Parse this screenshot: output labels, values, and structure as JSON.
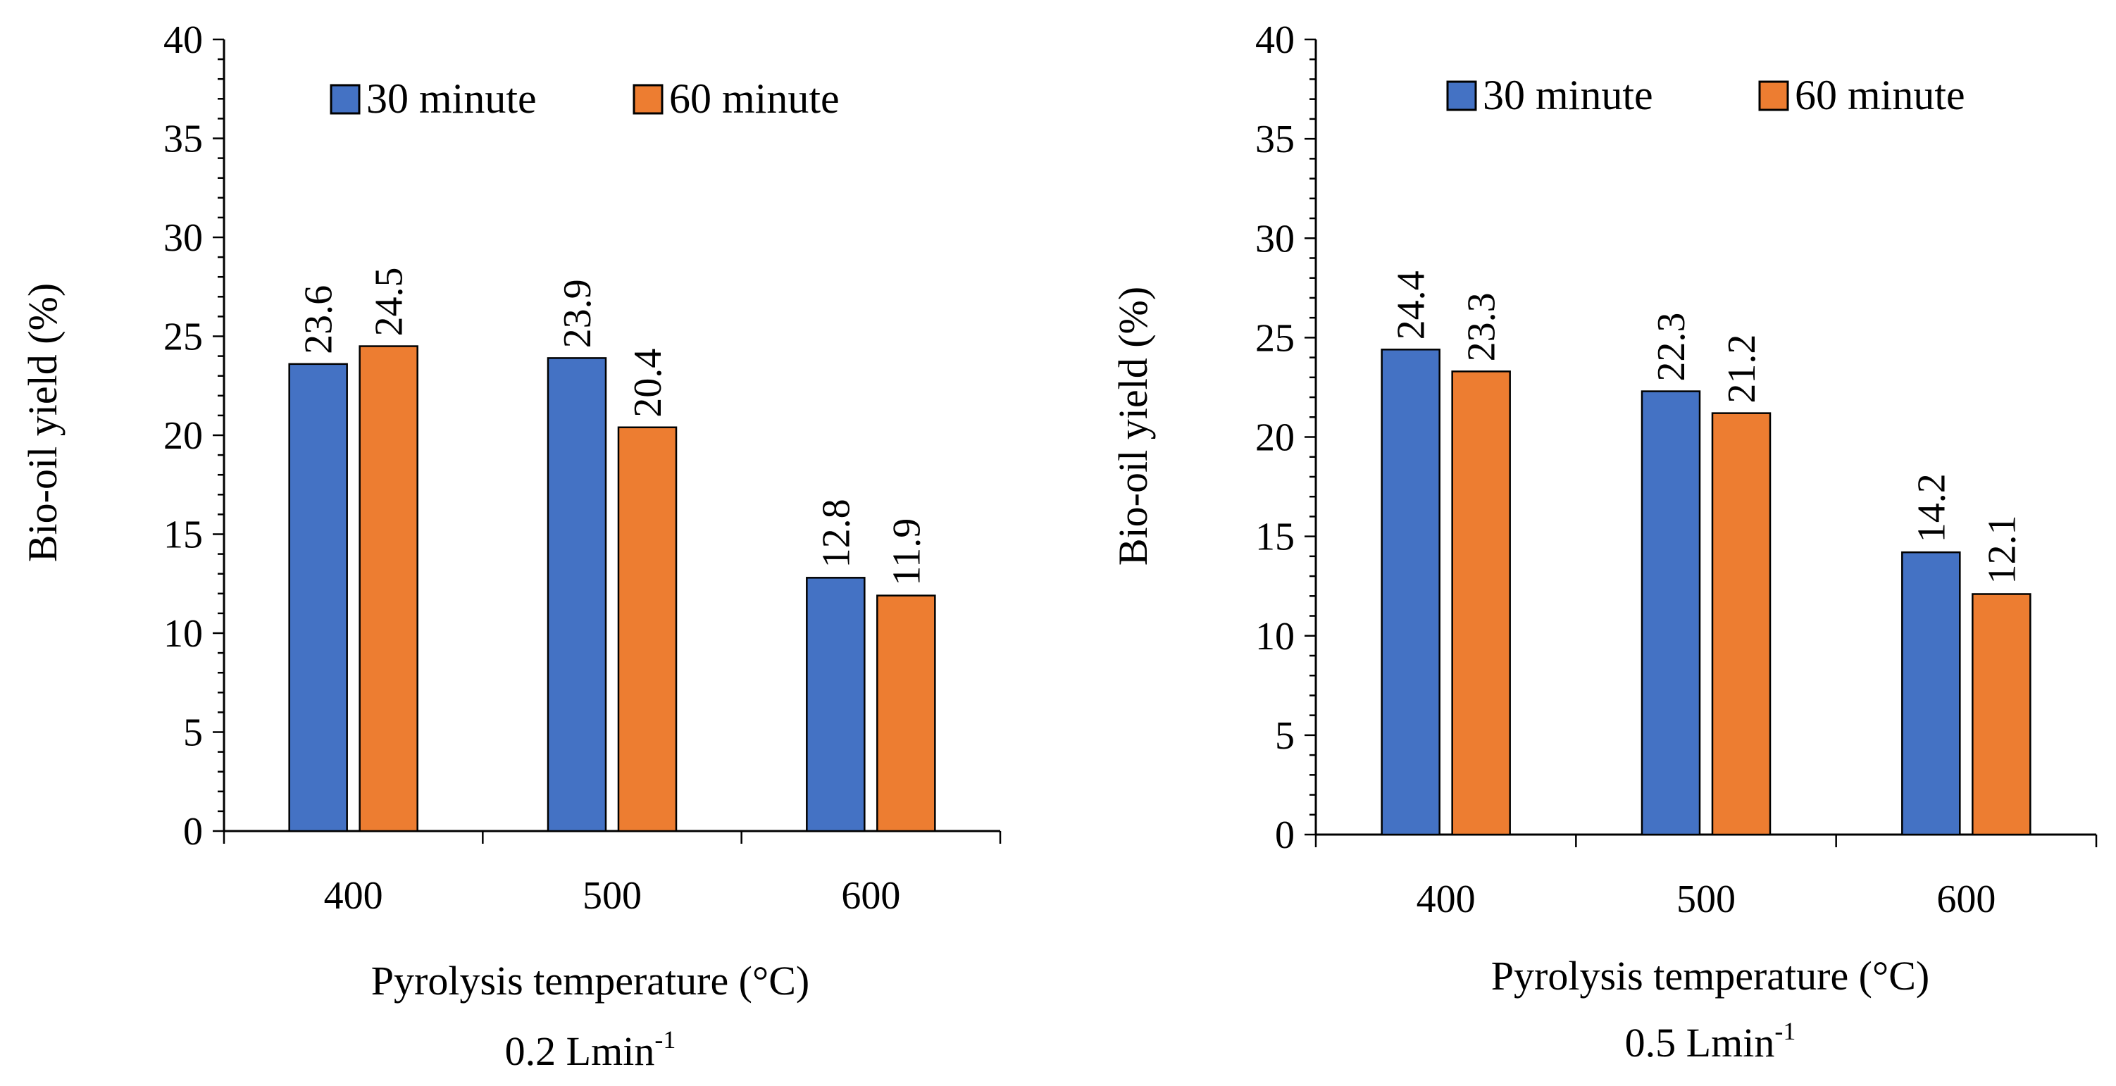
{
  "figure": {
    "background": "#ffffff"
  },
  "chart_data": [
    {
      "type": "bar",
      "title": "",
      "xlabel": "Pyrolysis temperature  (°C)",
      "ylabel": "Bio-oil yield (%)",
      "subtitle_main": "0.2 Lmin",
      "subtitle_sup": "-1",
      "categories": [
        "400",
        "500",
        "600"
      ],
      "ylim": [
        0,
        40
      ],
      "yticks": [
        "0",
        "5",
        "10",
        "15",
        "20",
        "25",
        "30",
        "35",
        "40"
      ],
      "legend_position": "top",
      "series": [
        {
          "name": "30 minute",
          "color": "#4472C4",
          "values": [
            23.6,
            23.9,
            12.8
          ],
          "labels": [
            "23.6",
            "23.9",
            "12.8"
          ]
        },
        {
          "name": "60 minute",
          "color": "#ED7D31",
          "values": [
            24.5,
            20.4,
            11.9
          ],
          "labels": [
            "24.5",
            "20.4",
            "11.9"
          ]
        }
      ]
    },
    {
      "type": "bar",
      "title": "",
      "xlabel": "Pyrolysis temperature  (°C)",
      "ylabel": "Bio-oil yield (%)",
      "subtitle_main": "0.5 Lmin",
      "subtitle_sup": "-1",
      "categories": [
        "400",
        "500",
        "600"
      ],
      "ylim": [
        0,
        40
      ],
      "yticks": [
        "0",
        "5",
        "10",
        "15",
        "20",
        "25",
        "30",
        "35",
        "40"
      ],
      "legend_position": "top",
      "series": [
        {
          "name": "30 minute",
          "color": "#4472C4",
          "values": [
            24.4,
            22.3,
            14.2
          ],
          "labels": [
            "24.4",
            "22.3",
            "14.2"
          ]
        },
        {
          "name": "60 minute",
          "color": "#ED7D31",
          "values": [
            23.3,
            21.2,
            12.1
          ],
          "labels": [
            "23.3",
            "21.2",
            "12.1"
          ]
        }
      ]
    }
  ]
}
